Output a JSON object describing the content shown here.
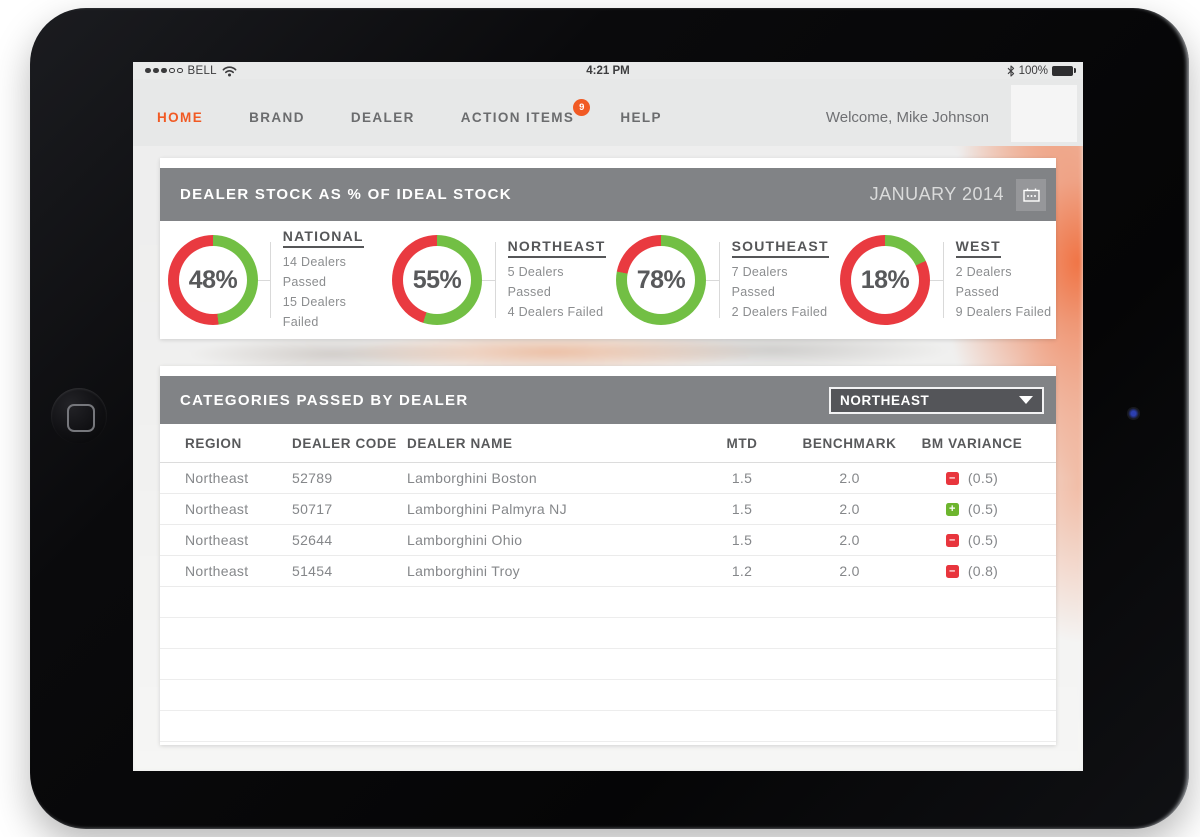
{
  "status_bar": {
    "carrier": "BELL",
    "time": "4:21 PM",
    "battery_percent": "100%"
  },
  "nav": {
    "items": [
      {
        "id": "home",
        "label": "HOME",
        "active": true
      },
      {
        "id": "brand",
        "label": "BRAND",
        "active": false
      },
      {
        "id": "dealer",
        "label": "DEALER",
        "active": false
      },
      {
        "id": "action-items",
        "label": "ACTION ITEMS",
        "active": false,
        "badge": "9"
      },
      {
        "id": "help",
        "label": "HELP",
        "active": false
      }
    ],
    "welcome": "Welcome, Mike Johnson"
  },
  "stock_panel": {
    "title": "DEALER STOCK AS % OF IDEAL STOCK",
    "period": "JANUARY 2014"
  },
  "chart_data": {
    "type": "pie",
    "variant": "donut",
    "title": "DEALER STOCK AS % OF IDEAL STOCK",
    "period": "JANUARY 2014",
    "legend_colors": {
      "passed": "#72bf44",
      "failed": "#e93a40"
    },
    "series": [
      {
        "region": "NATIONAL",
        "percent": 48,
        "passed": 14,
        "failed": 15,
        "passed_label": "14 Dealers Passed",
        "failed_label": "15 Dealers Failed"
      },
      {
        "region": "NORTHEAST",
        "percent": 55,
        "passed": 5,
        "failed": 4,
        "passed_label": "5 Dealers Passed",
        "failed_label": "4 Dealers Failed"
      },
      {
        "region": "SOUTHEAST",
        "percent": 78,
        "passed": 7,
        "failed": 2,
        "passed_label": "7 Dealers Passed",
        "failed_label": "2 Dealers Failed"
      },
      {
        "region": "WEST",
        "percent": 18,
        "passed": 2,
        "failed": 9,
        "passed_label": "2 Dealers Passed",
        "failed_label": "9 Dealers Failed"
      }
    ]
  },
  "categories_panel": {
    "title": "CATEGORIES PASSED BY DEALER",
    "region_dropdown": {
      "selected": "NORTHEAST"
    },
    "table": {
      "columns": [
        "REGION",
        "DEALER CODE",
        "DEALER NAME",
        "MTD",
        "BENCHMARK",
        "BM VARIANCE"
      ],
      "rows": [
        {
          "region": "Northeast",
          "dealer_code": "52789",
          "dealer_name": "Lamborghini Boston",
          "mtd": "1.5",
          "benchmark": "2.0",
          "variance": "(0.5)",
          "variance_dir": "minus"
        },
        {
          "region": "Northeast",
          "dealer_code": "50717",
          "dealer_name": "Lamborghini Palmyra NJ",
          "mtd": "1.5",
          "benchmark": "2.0",
          "variance": "(0.5)",
          "variance_dir": "plus"
        },
        {
          "region": "Northeast",
          "dealer_code": "52644",
          "dealer_name": "Lamborghini Ohio",
          "mtd": "1.5",
          "benchmark": "2.0",
          "variance": "(0.5)",
          "variance_dir": "minus"
        },
        {
          "region": "Northeast",
          "dealer_code": "51454",
          "dealer_name": "Lamborghini Troy",
          "mtd": "1.2",
          "benchmark": "2.0",
          "variance": "(0.8)",
          "variance_dir": "minus"
        }
      ],
      "empty_row_count": 5
    }
  },
  "colors": {
    "accent_orange": "#f15a24",
    "header_bar_gray": "#818386",
    "pass_green": "#72bf44",
    "fail_red": "#e93a40",
    "variance_plus_green": "#6db52e",
    "variance_minus_red": "#e8353d",
    "text_dark": "#58595b",
    "text_gray": "#85878a"
  }
}
